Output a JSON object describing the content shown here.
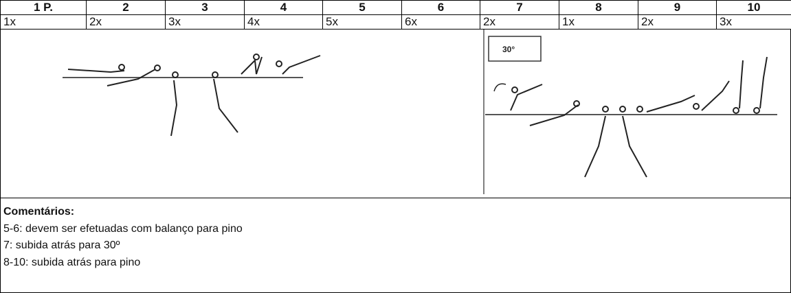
{
  "table": {
    "header": [
      "1 P.",
      "2",
      "3",
      "4",
      "5",
      "6",
      "7",
      "8",
      "9",
      "10"
    ],
    "reps": [
      "1x",
      "2x",
      "3x",
      "4x",
      "5x",
      "6x",
      "2x",
      "1x",
      "2x",
      "3x"
    ]
  },
  "figure": {
    "label": "30°"
  },
  "comments": {
    "title": "Comentários:",
    "lines": [
      "5-6: devem ser efetuadas com balanço para pino",
      "7: subida atrás para 30º",
      "8-10: subida atrás para pino"
    ]
  }
}
